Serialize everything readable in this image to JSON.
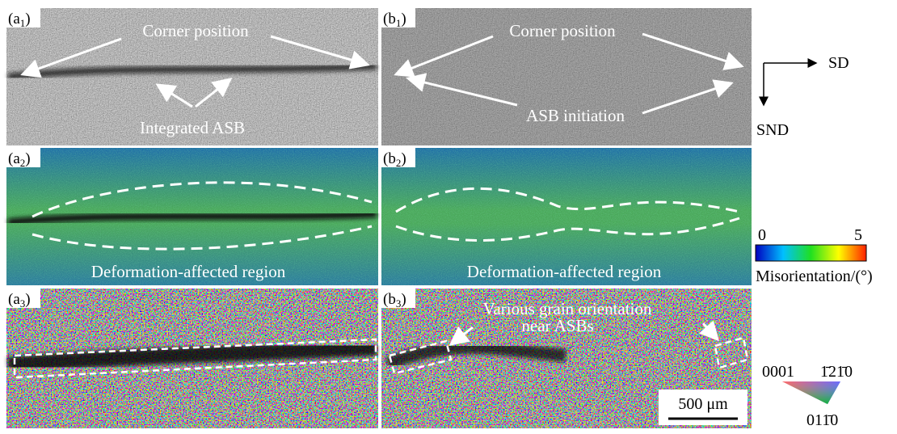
{
  "panels": [
    {
      "label": [
        "(a",
        "1",
        ")"
      ],
      "annotations": [
        "Corner position",
        "Integrated ASB"
      ]
    },
    {
      "label": [
        "(b",
        "1",
        ")"
      ],
      "annotations": [
        "Corner position",
        "ASB initiation"
      ]
    },
    {
      "label": [
        "(a",
        "2",
        ")"
      ],
      "annotations": [
        "Deformation-affected region"
      ]
    },
    {
      "label": [
        "(b",
        "2",
        ")"
      ],
      "annotations": [
        "Deformation-affected region"
      ]
    },
    {
      "label": [
        "(a",
        "3",
        ")"
      ],
      "annotations": []
    },
    {
      "label": [
        "(b",
        "3",
        ")"
      ],
      "annotations": [
        "Various grain orientation",
        "near ASBs"
      ]
    }
  ],
  "scale_bar": "500 μm",
  "axes": {
    "x": "SD",
    "y": "SND"
  },
  "colorbar": {
    "min": "0",
    "max": "5",
    "label": "Misorientation/(°)"
  },
  "ipf": {
    "left": "0001",
    "right": "1̄21̄0",
    "bottom": "011̄0"
  }
}
